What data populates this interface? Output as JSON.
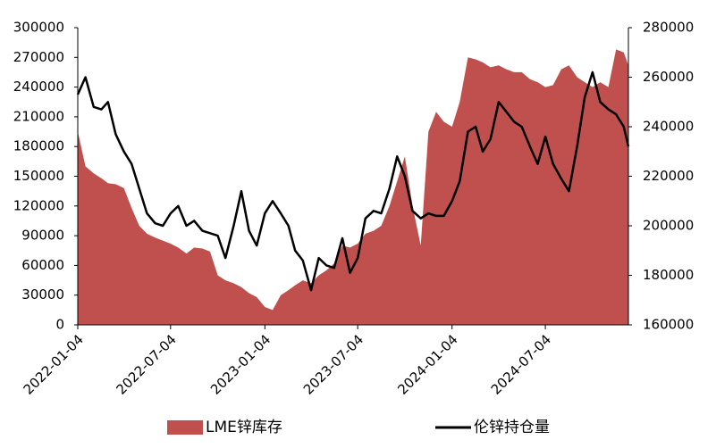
{
  "chart_data": {
    "type": "area",
    "x": [
      "2022-01-04",
      "2022-01-19",
      "2022-02-04",
      "2022-02-19",
      "2022-03-04",
      "2022-03-19",
      "2022-04-04",
      "2022-04-19",
      "2022-05-04",
      "2022-05-19",
      "2022-06-04",
      "2022-06-19",
      "2022-07-04",
      "2022-07-19",
      "2022-08-04",
      "2022-08-19",
      "2022-09-04",
      "2022-09-19",
      "2022-10-04",
      "2022-10-19",
      "2022-11-04",
      "2022-11-19",
      "2022-12-04",
      "2022-12-19",
      "2023-01-04",
      "2023-01-19",
      "2023-02-04",
      "2023-02-19",
      "2023-03-04",
      "2023-03-19",
      "2023-04-04",
      "2023-04-19",
      "2023-05-04",
      "2023-05-19",
      "2023-06-04",
      "2023-06-19",
      "2023-07-04",
      "2023-07-19",
      "2023-08-04",
      "2023-08-19",
      "2023-09-04",
      "2023-09-19",
      "2023-10-04",
      "2023-10-19",
      "2023-11-04",
      "2023-11-19",
      "2023-12-04",
      "2023-12-19",
      "2024-01-04",
      "2024-01-19",
      "2024-02-04",
      "2024-02-19",
      "2024-03-04",
      "2024-03-19",
      "2024-04-04",
      "2024-04-19",
      "2024-05-04",
      "2024-05-19",
      "2024-06-04",
      "2024-06-19",
      "2024-07-04",
      "2024-07-19",
      "2024-08-04",
      "2024-08-19",
      "2024-09-04",
      "2024-09-19",
      "2024-10-04",
      "2024-10-19",
      "2024-11-04",
      "2024-11-19",
      "2024-12-04",
      "2024-12-13"
    ],
    "series": [
      {
        "name": "LME锌库存",
        "type": "area",
        "color": "#c0504d",
        "values": [
          195000,
          160000,
          153000,
          148000,
          143000,
          142000,
          138000,
          118000,
          100000,
          92000,
          88000,
          85000,
          82000,
          78000,
          72000,
          78000,
          77000,
          74000,
          50000,
          45000,
          42000,
          38000,
          32000,
          28000,
          18000,
          15000,
          30000,
          35000,
          40000,
          45000,
          42000,
          50000,
          55000,
          62000,
          80000,
          78000,
          82000,
          92000,
          95000,
          100000,
          120000,
          145000,
          170000,
          120000,
          80000,
          195000,
          215000,
          205000,
          200000,
          225000,
          270000,
          268000,
          265000,
          260000,
          262000,
          258000,
          255000,
          255000,
          248000,
          245000,
          240000,
          242000,
          258000,
          262000,
          250000,
          245000,
          240000,
          245000,
          240000,
          278000,
          275000,
          262000
        ]
      },
      {
        "name": "伦锌持仓量",
        "type": "line",
        "axis": "y2",
        "color": "#000000",
        "values": [
          253000,
          260000,
          248000,
          247000,
          250000,
          237000,
          230000,
          225000,
          215000,
          205000,
          201000,
          200000,
          205000,
          208000,
          200000,
          202000,
          198000,
          197000,
          196000,
          187000,
          200000,
          214000,
          198000,
          192000,
          205000,
          210000,
          205000,
          200000,
          190000,
          186000,
          174000,
          187000,
          184000,
          183000,
          195000,
          181000,
          187000,
          203000,
          206000,
          205000,
          215000,
          228000,
          220000,
          206000,
          203000,
          205000,
          204000,
          204000,
          210000,
          218000,
          238000,
          240000,
          230000,
          235000,
          250000,
          246000,
          242000,
          240000,
          232000,
          225000,
          236000,
          225000,
          219000,
          214000,
          232000,
          252000,
          262000,
          250000,
          247000,
          245000,
          240000,
          232000
        ]
      }
    ],
    "xlim": [
      "2022-01-04",
      "2024-12-13"
    ],
    "xticks": [
      "2022-01-04",
      "2022-07-04",
      "2023-01-04",
      "2023-07-04",
      "2024-01-04",
      "2024-07-04"
    ],
    "ylim": [
      0,
      300000
    ],
    "yticks": [
      0,
      30000,
      60000,
      90000,
      120000,
      150000,
      180000,
      210000,
      240000,
      270000,
      300000
    ],
    "y2lim": [
      160000,
      280000
    ],
    "y2ticks": [
      160000,
      180000,
      200000,
      220000,
      240000,
      260000,
      280000
    ]
  }
}
